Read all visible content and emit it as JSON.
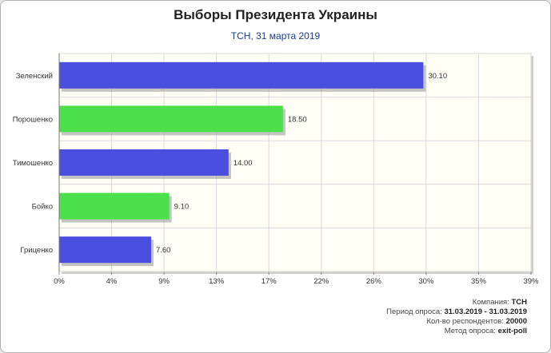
{
  "chart_data": {
    "type": "bar",
    "orientation": "horizontal",
    "title": "Выборы Президента Украины",
    "subtitle": "ТСН, 31 марта 2019",
    "categories": [
      "Зеленский",
      "Порошенко",
      "Тимошенко",
      "Бойко",
      "Гриценко"
    ],
    "values": [
      30.1,
      18.5,
      14.0,
      9.1,
      7.6
    ],
    "value_labels": [
      "30.10",
      "18.50",
      "14.00",
      "9.10",
      "7.60"
    ],
    "bar_colors": [
      "#4b4fdf",
      "#4ce04c",
      "#4b4fdf",
      "#4ce04c",
      "#4b4fdf"
    ],
    "xlim": [
      0,
      39
    ],
    "xticks": [
      0,
      4.333,
      8.667,
      13,
      17.333,
      21.667,
      26,
      30.333,
      34.667,
      39
    ],
    "xtick_labels": [
      "0%",
      "4%",
      "9%",
      "13%",
      "17%",
      "22%",
      "26%",
      "30%",
      "35%",
      "39%"
    ],
    "grid": true,
    "legend": "none",
    "plot_background": "#fffff6"
  },
  "info": {
    "company_label": "Компания:",
    "company": "ТСН",
    "period_label": "Период опроса:",
    "period": "31.03.2019 - 31.03.2019",
    "respondents_label": "Кол-во респондентов:",
    "respondents": "20000",
    "method_label": "Метод опроса:",
    "method": "exit-poll"
  }
}
